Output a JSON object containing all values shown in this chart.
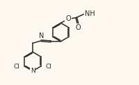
{
  "bg_color": "#fdf8f0",
  "bond_color": "#2a2a2a",
  "bond_lw": 1.1,
  "font_size": 6.5,
  "fig_width": 2.0,
  "fig_height": 1.23,
  "dpi": 100,
  "xlim": [
    0,
    10
  ],
  "ylim": [
    0,
    6.2
  ]
}
